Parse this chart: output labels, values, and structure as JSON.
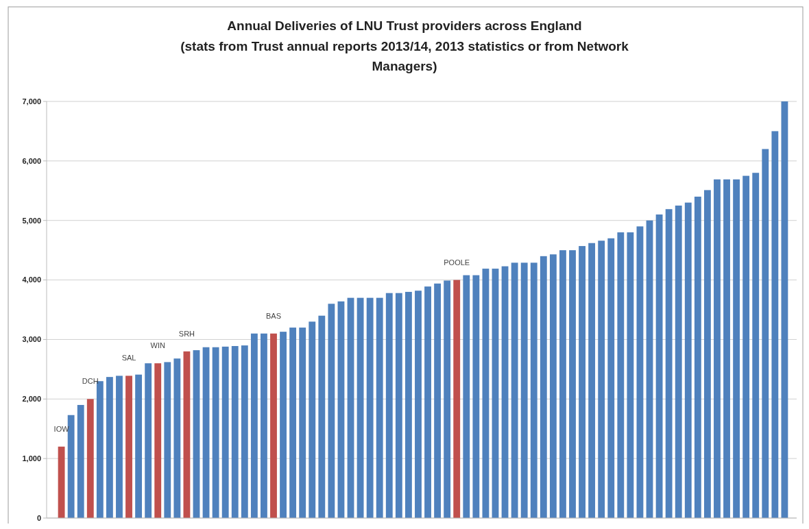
{
  "chart_data": {
    "type": "bar",
    "title": "Annual Deliveries of LNU Trust providers across England",
    "subtitle": "(stats from Trust annual reports 2013/14, 2013 statistics or from Network Managers)",
    "categories": [
      null,
      null,
      null,
      null,
      null,
      null,
      null,
      null,
      null,
      null,
      null,
      null,
      null,
      null,
      null,
      null,
      null,
      null,
      null,
      null,
      null,
      null,
      null,
      null,
      null,
      null,
      null,
      null,
      null,
      null,
      null,
      null,
      null,
      null,
      null,
      null,
      null,
      null,
      null,
      null,
      null,
      null,
      null,
      null,
      null,
      null,
      null,
      null,
      null,
      null,
      null,
      null,
      null,
      null,
      null,
      null,
      null,
      null,
      null,
      null,
      null,
      null,
      null,
      null,
      null,
      null,
      null,
      null,
      null,
      null,
      null,
      null,
      null,
      null,
      null,
      null
    ],
    "values": [
      1200,
      1730,
      1900,
      2000,
      2300,
      2370,
      2390,
      2390,
      2410,
      2600,
      2600,
      2620,
      2680,
      2800,
      2820,
      2870,
      2870,
      2880,
      2890,
      2900,
      3100,
      3100,
      3100,
      3130,
      3200,
      3200,
      3300,
      3400,
      3600,
      3640,
      3700,
      3700,
      3700,
      3700,
      3780,
      3780,
      3800,
      3820,
      3890,
      3940,
      3990,
      4000,
      4080,
      4080,
      4190,
      4190,
      4230,
      4290,
      4290,
      4290,
      4400,
      4430,
      4500,
      4500,
      4570,
      4620,
      4660,
      4700,
      4800,
      4800,
      4900,
      5000,
      5100,
      5190,
      5250,
      5300,
      5400,
      5510,
      5690,
      5690,
      5690,
      5750,
      5800,
      6200,
      6500,
      7000
    ],
    "colors": [
      "#c0504d",
      "#4f81bd",
      "#4f81bd",
      "#c0504d",
      "#4f81bd",
      "#4f81bd",
      "#4f81bd",
      "#c0504d",
      "#4f81bd",
      "#4f81bd",
      "#c0504d",
      "#4f81bd",
      "#4f81bd",
      "#c0504d",
      "#4f81bd",
      "#4f81bd",
      "#4f81bd",
      "#4f81bd",
      "#4f81bd",
      "#4f81bd",
      "#4f81bd",
      "#4f81bd",
      "#c0504d",
      "#4f81bd",
      "#4f81bd",
      "#4f81bd",
      "#4f81bd",
      "#4f81bd",
      "#4f81bd",
      "#4f81bd",
      "#4f81bd",
      "#4f81bd",
      "#4f81bd",
      "#4f81bd",
      "#4f81bd",
      "#4f81bd",
      "#4f81bd",
      "#4f81bd",
      "#4f81bd",
      "#4f81bd",
      "#4f81bd",
      "#c0504d",
      "#4f81bd",
      "#4f81bd",
      "#4f81bd",
      "#4f81bd",
      "#4f81bd",
      "#4f81bd",
      "#4f81bd",
      "#4f81bd",
      "#4f81bd",
      "#4f81bd",
      "#4f81bd",
      "#4f81bd",
      "#4f81bd",
      "#4f81bd",
      "#4f81bd",
      "#4f81bd",
      "#4f81bd",
      "#4f81bd",
      "#4f81bd",
      "#4f81bd",
      "#4f81bd",
      "#4f81bd",
      "#4f81bd",
      "#4f81bd",
      "#4f81bd",
      "#4f81bd",
      "#4f81bd",
      "#4f81bd",
      "#4f81bd",
      "#4f81bd",
      "#4f81bd",
      "#4f81bd",
      "#4f81bd",
      "#4f81bd"
    ],
    "value_labels": [
      "IOW",
      null,
      null,
      "DCH",
      null,
      null,
      null,
      "SAL",
      null,
      null,
      "WIN",
      null,
      null,
      "SRH",
      null,
      null,
      null,
      null,
      null,
      null,
      null,
      null,
      "BAS",
      null,
      null,
      null,
      null,
      null,
      null,
      null,
      null,
      null,
      null,
      null,
      null,
      null,
      null,
      null,
      null,
      null,
      null,
      "POOLE",
      null,
      null,
      null,
      null,
      null,
      null,
      null,
      null,
      null,
      null,
      null,
      null,
      null,
      null,
      null,
      null,
      null,
      null,
      null,
      null,
      null,
      null,
      null,
      null,
      null,
      null,
      null,
      null,
      null,
      null,
      null,
      null,
      null,
      null
    ],
    "ylim": [
      0,
      7000
    ],
    "yticks": [
      0,
      {
        "value": 1000,
        "label": "1,000"
      },
      {
        "value": 2000,
        "label": "2,000"
      },
      {
        "value": 3000,
        "label": "3,000"
      },
      {
        "value": 4000,
        "label": "4,000"
      },
      {
        "value": 5000,
        "label": "5,000"
      },
      {
        "value": 6000,
        "label": "6,000"
      },
      {
        "value": 7000,
        "label": "7,000"
      }
    ],
    "grid": "y"
  }
}
